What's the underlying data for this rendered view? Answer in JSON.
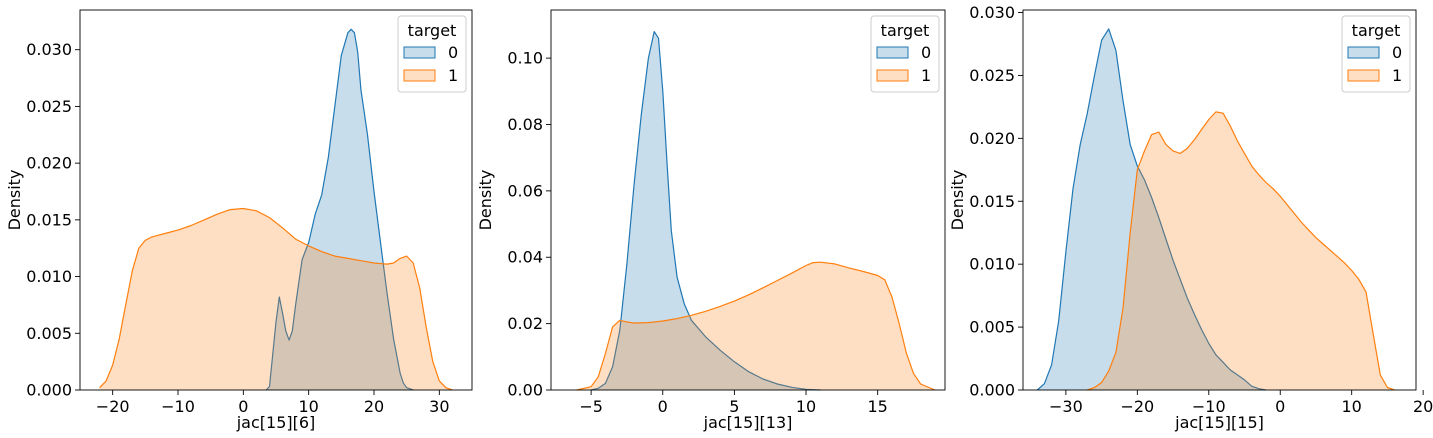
{
  "chart_data": [
    {
      "type": "area",
      "xlabel": "jac[15][6]",
      "ylabel": "Density",
      "xlim": [
        -25,
        35
      ],
      "ylim": [
        0,
        0.0335
      ],
      "xticks": [
        -20,
        -10,
        0,
        10,
        20,
        30
      ],
      "xtick_labels": [
        "−20",
        "−10",
        "0",
        "10",
        "20",
        "30"
      ],
      "yticks": [
        0,
        0.005,
        0.01,
        0.015,
        0.02,
        0.025,
        0.03
      ],
      "ytick_labels": [
        "0.000",
        "0.005",
        "0.010",
        "0.015",
        "0.020",
        "0.025",
        "0.030"
      ],
      "legend": {
        "title": "target",
        "placement": "top-right"
      },
      "series": [
        {
          "name": "0",
          "color": "#1f77b4",
          "x": [
            3.5,
            4,
            5,
            5.5,
            6,
            6.5,
            7,
            7.5,
            8,
            9,
            10,
            11,
            12,
            13,
            14,
            15,
            16,
            16.5,
            17,
            17.5,
            18,
            19,
            20,
            21,
            22,
            23,
            24,
            24.5,
            25,
            26
          ],
          "y": [
            0,
            0.0003,
            0.006,
            0.0082,
            0.0068,
            0.0052,
            0.0044,
            0.0052,
            0.0075,
            0.0115,
            0.013,
            0.0155,
            0.0172,
            0.0205,
            0.025,
            0.0295,
            0.0315,
            0.0318,
            0.0315,
            0.0298,
            0.0265,
            0.0225,
            0.0175,
            0.013,
            0.0085,
            0.0045,
            0.0015,
            0.0006,
            0.0002,
            0
          ]
        },
        {
          "name": "1",
          "color": "#ff7f0e",
          "x": [
            -22,
            -21,
            -20,
            -19,
            -18,
            -17,
            -16,
            -15,
            -14,
            -12,
            -10,
            -8,
            -6,
            -4,
            -2,
            0,
            2,
            4,
            6,
            8,
            10,
            12,
            14,
            16,
            18,
            20,
            22,
            23,
            24,
            25,
            26,
            27,
            28,
            29,
            30,
            31,
            32
          ],
          "y": [
            0.0002,
            0.0008,
            0.0022,
            0.0045,
            0.0075,
            0.0105,
            0.0125,
            0.0132,
            0.0135,
            0.0138,
            0.0141,
            0.0145,
            0.015,
            0.0155,
            0.0159,
            0.016,
            0.0158,
            0.0152,
            0.0143,
            0.0133,
            0.0127,
            0.0122,
            0.0118,
            0.0116,
            0.0114,
            0.0112,
            0.0111,
            0.0112,
            0.0116,
            0.0118,
            0.0112,
            0.009,
            0.0055,
            0.0025,
            0.0008,
            0.0002,
            0
          ]
        }
      ]
    },
    {
      "type": "area",
      "xlabel": "jac[15][13]",
      "ylabel": "Density",
      "xlim": [
        -7.8,
        19.7
      ],
      "ylim": [
        0,
        0.1145
      ],
      "xticks": [
        -5,
        0,
        5,
        10,
        15
      ],
      "xtick_labels": [
        "−5",
        "0",
        "5",
        "10",
        "15"
      ],
      "yticks": [
        0,
        0.02,
        0.04,
        0.06,
        0.08,
        0.1
      ],
      "ytick_labels": [
        "0.00",
        "0.02",
        "0.04",
        "0.06",
        "0.08",
        "0.10"
      ],
      "legend": {
        "title": "target",
        "placement": "top-right"
      },
      "series": [
        {
          "name": "0",
          "color": "#1f77b4",
          "x": [
            -5,
            -4.5,
            -4,
            -3.5,
            -3,
            -2.5,
            -2,
            -1.5,
            -1,
            -0.6,
            -0.3,
            0,
            0.3,
            0.6,
            1,
            1.5,
            2,
            3,
            4,
            5,
            6,
            7,
            8,
            9,
            10,
            11
          ],
          "y": [
            0,
            0.0005,
            0.002,
            0.007,
            0.018,
            0.038,
            0.062,
            0.083,
            0.1,
            0.108,
            0.106,
            0.09,
            0.068,
            0.048,
            0.034,
            0.026,
            0.021,
            0.016,
            0.012,
            0.0085,
            0.0055,
            0.0033,
            0.0018,
            0.0008,
            0.0002,
            0
          ]
        },
        {
          "name": "1",
          "color": "#ff7f0e",
          "x": [
            -6,
            -5,
            -4.5,
            -4,
            -3.5,
            -3,
            -2.5,
            -2,
            -1,
            0,
            1,
            2,
            3,
            4,
            5,
            6,
            7,
            8,
            9,
            10,
            10.5,
            11,
            12,
            13,
            14,
            15,
            15.5,
            16,
            16.5,
            17,
            17.5,
            18,
            19
          ],
          "y": [
            0,
            0.001,
            0.004,
            0.011,
            0.019,
            0.021,
            0.0205,
            0.0202,
            0.0203,
            0.0208,
            0.0215,
            0.0225,
            0.0237,
            0.0252,
            0.0268,
            0.0287,
            0.0308,
            0.033,
            0.0352,
            0.0375,
            0.0384,
            0.0385,
            0.038,
            0.0368,
            0.0357,
            0.0345,
            0.0332,
            0.028,
            0.02,
            0.0112,
            0.005,
            0.0018,
            0
          ]
        }
      ]
    },
    {
      "type": "area",
      "xlabel": "jac[15][15]",
      "ylabel": "Density",
      "xlim": [
        -36,
        19
      ],
      "ylim": [
        0,
        0.0302
      ],
      "xticks": [
        -30,
        -20,
        -10,
        0,
        10,
        20
      ],
      "xtick_labels": [
        "−30",
        "−20",
        "−10",
        "0",
        "10",
        "20"
      ],
      "yticks": [
        0,
        0.005,
        0.01,
        0.015,
        0.02,
        0.025,
        0.03
      ],
      "ytick_labels": [
        "0.000",
        "0.005",
        "0.010",
        "0.015",
        "0.020",
        "0.025",
        "0.030"
      ],
      "legend": {
        "title": "target",
        "placement": "top-right"
      },
      "series": [
        {
          "name": "0",
          "color": "#1f77b4",
          "x": [
            -34,
            -33,
            -32,
            -31,
            -30,
            -29,
            -28,
            -27,
            -26,
            -25,
            -24,
            -23,
            -22,
            -21,
            -20,
            -19,
            -18,
            -17,
            -16,
            -15,
            -14,
            -13,
            -12,
            -11,
            -10,
            -9,
            -8,
            -7,
            -6,
            -5,
            -4,
            -3,
            -2
          ],
          "y": [
            0,
            0.0005,
            0.002,
            0.0055,
            0.011,
            0.016,
            0.0195,
            0.022,
            0.025,
            0.0278,
            0.0287,
            0.027,
            0.023,
            0.0195,
            0.0178,
            0.0167,
            0.0153,
            0.0137,
            0.012,
            0.0103,
            0.0088,
            0.0073,
            0.006,
            0.0048,
            0.0037,
            0.0028,
            0.0022,
            0.0016,
            0.0012,
            0.0008,
            0.0003,
            0.0001,
            0
          ]
        },
        {
          "name": "1",
          "color": "#ff7f0e",
          "x": [
            -27,
            -26,
            -25,
            -24,
            -23,
            -22,
            -21,
            -20,
            -19,
            -18,
            -17,
            -16,
            -15,
            -14,
            -13,
            -12,
            -11,
            -10,
            -9,
            -8,
            -7,
            -6,
            -5,
            -4,
            -3,
            -2,
            -1,
            0,
            1,
            2,
            3,
            4,
            5,
            6,
            7,
            8,
            9,
            10,
            11,
            12,
            13,
            14,
            15,
            16
          ],
          "y": [
            0,
            0.0002,
            0.0006,
            0.0015,
            0.003,
            0.0065,
            0.0125,
            0.0175,
            0.019,
            0.0203,
            0.0205,
            0.0195,
            0.019,
            0.0188,
            0.0192,
            0.0199,
            0.0207,
            0.0215,
            0.0221,
            0.022,
            0.021,
            0.0198,
            0.0188,
            0.0178,
            0.0171,
            0.0165,
            0.016,
            0.0154,
            0.0147,
            0.014,
            0.0133,
            0.0127,
            0.0121,
            0.0116,
            0.0111,
            0.0106,
            0.0101,
            0.0095,
            0.0088,
            0.0078,
            0.0045,
            0.0012,
            0.0002,
            0
          ]
        }
      ]
    }
  ]
}
